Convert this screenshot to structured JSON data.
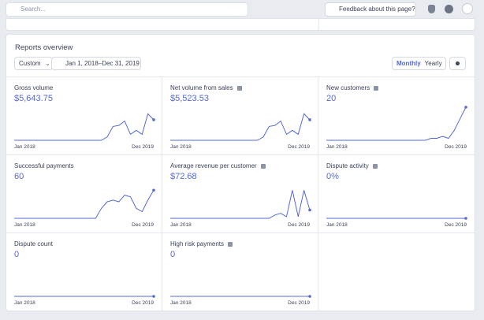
{
  "topbar": {
    "search_placeholder": "Search...",
    "feedback": "Feedback about this page?"
  },
  "reports": {
    "title": "Reports overview",
    "range_preset": "Custom",
    "date_range": "Jan 1, 2018–Dec 31, 2019",
    "interval_options": [
      "Monthly",
      "Yearly"
    ],
    "interval_selected": 0,
    "spark_ylim": [
      0,
      100
    ],
    "cards": [
      {
        "label": "Gross volume",
        "value": "$5,643.75",
        "info": false,
        "start": "Jan 2018",
        "end": "Dec 2019",
        "spark": [
          0,
          0,
          0,
          0,
          0,
          0,
          0,
          0,
          0,
          0,
          0,
          0,
          0,
          0,
          0,
          0,
          10,
          42,
          45,
          58,
          18,
          30,
          18,
          80,
          62
        ]
      },
      {
        "label": "Net volume from sales",
        "value": "$5,523.53",
        "info": true,
        "start": "Jan 2018",
        "end": "Dec 2019",
        "spark": [
          0,
          0,
          0,
          0,
          0,
          0,
          0,
          0,
          0,
          0,
          0,
          0,
          0,
          0,
          0,
          0,
          10,
          42,
          45,
          58,
          18,
          30,
          18,
          80,
          62
        ]
      },
      {
        "label": "New customers",
        "value": "20",
        "info": true,
        "start": "Jan 2018",
        "end": "Dec 2019",
        "spark": [
          0,
          0,
          0,
          0,
          0,
          0,
          0,
          0,
          0,
          0,
          0,
          0,
          0,
          0,
          0,
          0,
          0,
          0,
          6,
          6,
          12,
          6,
          30,
          65,
          100
        ]
      },
      {
        "label": "Successful payments",
        "value": "60",
        "info": false,
        "start": "Jan 2018",
        "end": "Dec 2019",
        "spark": [
          0,
          0,
          0,
          0,
          0,
          0,
          0,
          0,
          0,
          0,
          0,
          0,
          0,
          0,
          0,
          30,
          50,
          55,
          50,
          70,
          65,
          30,
          20,
          55,
          85
        ]
      },
      {
        "label": "Average revenue per customer",
        "value": "$72.68",
        "info": true,
        "start": "Jan 2018",
        "end": "Dec 2019",
        "spark": [
          0,
          0,
          0,
          0,
          0,
          0,
          0,
          0,
          0,
          0,
          0,
          0,
          0,
          0,
          0,
          0,
          0,
          0,
          10,
          15,
          5,
          85,
          5,
          85,
          25
        ]
      },
      {
        "label": "Dispute activity",
        "value": "0%",
        "info": true,
        "start": "Jan 2018",
        "end": "Dec 2019",
        "spark": [
          0,
          0,
          0,
          0,
          0,
          0,
          0,
          0,
          0,
          0,
          0,
          0,
          0,
          0,
          0,
          0,
          0,
          0,
          0,
          0,
          0,
          0,
          0,
          0,
          0
        ]
      },
      {
        "label": "Dispute count",
        "value": "0",
        "info": false,
        "start": "Jan 2018",
        "end": "Dec 2019",
        "spark": [
          0,
          0,
          0,
          0,
          0,
          0,
          0,
          0,
          0,
          0,
          0,
          0,
          0,
          0,
          0,
          0,
          0,
          0,
          0,
          0,
          0,
          0,
          0,
          0,
          0
        ]
      },
      {
        "label": "High risk payments",
        "value": "0",
        "info": true,
        "start": "Jan 2018",
        "end": "Dec 2019",
        "spark": [
          0,
          0,
          0,
          0,
          0,
          0,
          0,
          0,
          0,
          0,
          0,
          0,
          0,
          0,
          0,
          0,
          0,
          0,
          0,
          0,
          0,
          0,
          0,
          0,
          0
        ]
      }
    ]
  }
}
